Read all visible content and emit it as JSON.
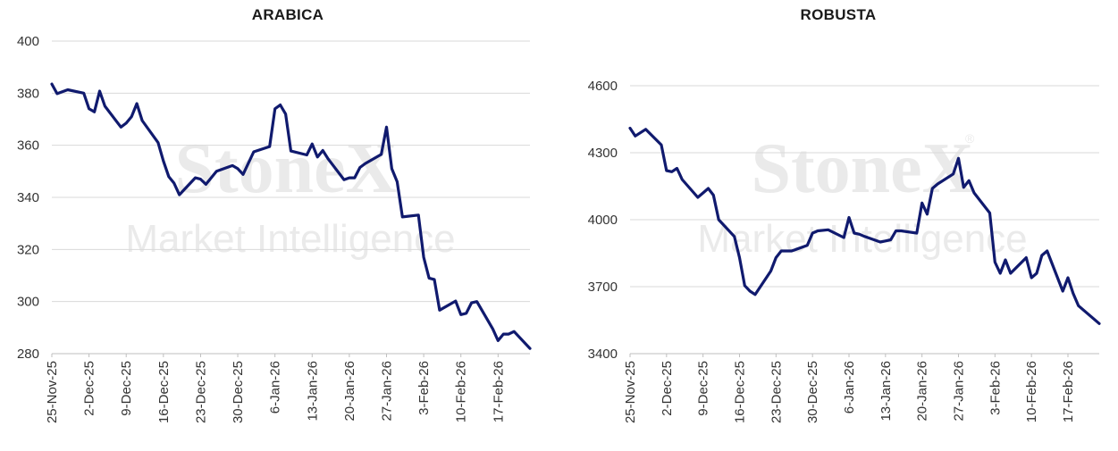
{
  "watermark": {
    "brand": "StoneX",
    "tagline": "Market Intelligence",
    "registered": "®"
  },
  "colors": {
    "line": "#101a6e",
    "grid": "#d9d9d9",
    "text": "#333333"
  },
  "chart_data": [
    {
      "type": "line",
      "title": "ARABICA",
      "xlabel": "",
      "ylabel": "",
      "ylim": [
        280,
        400
      ],
      "yticks": [
        280,
        300,
        320,
        340,
        360,
        380,
        400
      ],
      "xticks": [
        "25-Nov-25",
        "2-Dec-25",
        "9-Dec-25",
        "16-Dec-25",
        "23-Dec-25",
        "30-Dec-25",
        "6-Jan-26",
        "13-Jan-26",
        "20-Jan-26",
        "27-Jan-26",
        "3-Feb-26",
        "10-Feb-26",
        "17-Feb-26"
      ],
      "xlim": [
        "2025-11-25",
        "2026-02-23"
      ],
      "grid": "horizontal",
      "series": [
        {
          "x": [
            "2025-11-25",
            "2025-11-26",
            "2025-11-28",
            "2025-12-01",
            "2025-12-02",
            "2025-12-03",
            "2025-12-04",
            "2025-12-05",
            "2025-12-08",
            "2025-12-09",
            "2025-12-10",
            "2025-12-11",
            "2025-12-12",
            "2025-12-15",
            "2025-12-16",
            "2025-12-17",
            "2025-12-18",
            "2025-12-19",
            "2025-12-22",
            "2025-12-23",
            "2025-12-24",
            "2025-12-26",
            "2025-12-29",
            "2025-12-30",
            "2025-12-31",
            "2026-01-02",
            "2026-01-05",
            "2026-01-06",
            "2026-01-07",
            "2026-01-08",
            "2026-01-09",
            "2026-01-12",
            "2026-01-13",
            "2026-01-14",
            "2026-01-15",
            "2026-01-16",
            "2026-01-19",
            "2026-01-20",
            "2026-01-21",
            "2026-01-22",
            "2026-01-23",
            "2026-01-26",
            "2026-01-27",
            "2026-01-28",
            "2026-01-29",
            "2026-01-30",
            "2026-02-02",
            "2026-02-03",
            "2026-02-04",
            "2026-02-05",
            "2026-02-06",
            "2026-02-09",
            "2026-02-10",
            "2026-02-11",
            "2026-02-12",
            "2026-02-13",
            "2026-02-16",
            "2026-02-17",
            "2026-02-18",
            "2026-02-19",
            "2026-02-20",
            "2026-02-23"
          ],
          "values": [
            383.5,
            379.8,
            381.3,
            380.0,
            374.0,
            372.8,
            380.8,
            375.0,
            367.0,
            368.5,
            371.0,
            376.0,
            369.5,
            361.0,
            354.0,
            348.0,
            345.5,
            341.0,
            347.5,
            347.0,
            345.0,
            350.0,
            352.2,
            351.0,
            348.8,
            357.5,
            359.5,
            374.0,
            375.5,
            372.0,
            357.8,
            356.3,
            360.5,
            355.5,
            358.0,
            354.8,
            346.8,
            347.5,
            347.5,
            351.5,
            353.0,
            356.5,
            367.0,
            351.0,
            346.0,
            332.5,
            333.2,
            317.0,
            309.0,
            308.5,
            296.7,
            300.2,
            295.0,
            295.5,
            299.5,
            300.0,
            289.5,
            285.0,
            287.5,
            287.5,
            288.5,
            282.0
          ]
        }
      ]
    },
    {
      "type": "line",
      "title": "ROBUSTA",
      "xlabel": "",
      "ylabel": "",
      "ylim": [
        3400,
        4600
      ],
      "yticks": [
        3400,
        3700,
        4000,
        4300,
        4600
      ],
      "xticks": [
        "25-Nov-25",
        "2-Dec-25",
        "9-Dec-25",
        "16-Dec-25",
        "23-Dec-25",
        "30-Dec-25",
        "6-Jan-26",
        "13-Jan-26",
        "20-Jan-26",
        "27-Jan-26",
        "3-Feb-26",
        "10-Feb-26",
        "17-Feb-26"
      ],
      "xlim": [
        "2025-11-25",
        "2026-02-23"
      ],
      "grid": "horizontal",
      "series": [
        {
          "x": [
            "2025-11-25",
            "2025-11-26",
            "2025-11-28",
            "2025-12-01",
            "2025-12-02",
            "2025-12-03",
            "2025-12-04",
            "2025-12-05",
            "2025-12-08",
            "2025-12-09",
            "2025-12-10",
            "2025-12-11",
            "2025-12-12",
            "2025-12-15",
            "2025-12-16",
            "2025-12-17",
            "2025-12-18",
            "2025-12-19",
            "2025-12-22",
            "2025-12-23",
            "2025-12-24",
            "2025-12-26",
            "2025-12-29",
            "2025-12-30",
            "2025-12-31",
            "2026-01-02",
            "2026-01-05",
            "2026-01-06",
            "2026-01-07",
            "2026-01-08",
            "2026-01-09",
            "2026-01-12",
            "2026-01-13",
            "2026-01-14",
            "2026-01-15",
            "2026-01-16",
            "2026-01-19",
            "2026-01-20",
            "2026-01-21",
            "2026-01-22",
            "2026-01-23",
            "2026-01-26",
            "2026-01-27",
            "2026-01-28",
            "2026-01-29",
            "2026-01-30",
            "2026-02-02",
            "2026-02-03",
            "2026-02-04",
            "2026-02-05",
            "2026-02-06",
            "2026-02-09",
            "2026-02-10",
            "2026-02-11",
            "2026-02-12",
            "2026-02-13",
            "2026-02-16",
            "2026-02-17",
            "2026-02-18",
            "2026-02-19",
            "2026-02-20",
            "2026-02-23"
          ],
          "values": [
            4410,
            4375,
            4405,
            4335,
            4220,
            4215,
            4230,
            4180,
            4100,
            4120,
            4140,
            4110,
            4000,
            3925,
            3830,
            3705,
            3680,
            3665,
            3770,
            3830,
            3860,
            3860,
            3885,
            3940,
            3950,
            3955,
            3920,
            4010,
            3940,
            3935,
            3925,
            3900,
            3905,
            3910,
            3950,
            3950,
            3940,
            4075,
            4025,
            4140,
            4160,
            4205,
            4275,
            4145,
            4175,
            4120,
            4030,
            3810,
            3760,
            3820,
            3760,
            3830,
            3740,
            3760,
            3840,
            3860,
            3680,
            3740,
            3670,
            3615,
            3595,
            3535
          ]
        }
      ]
    }
  ]
}
